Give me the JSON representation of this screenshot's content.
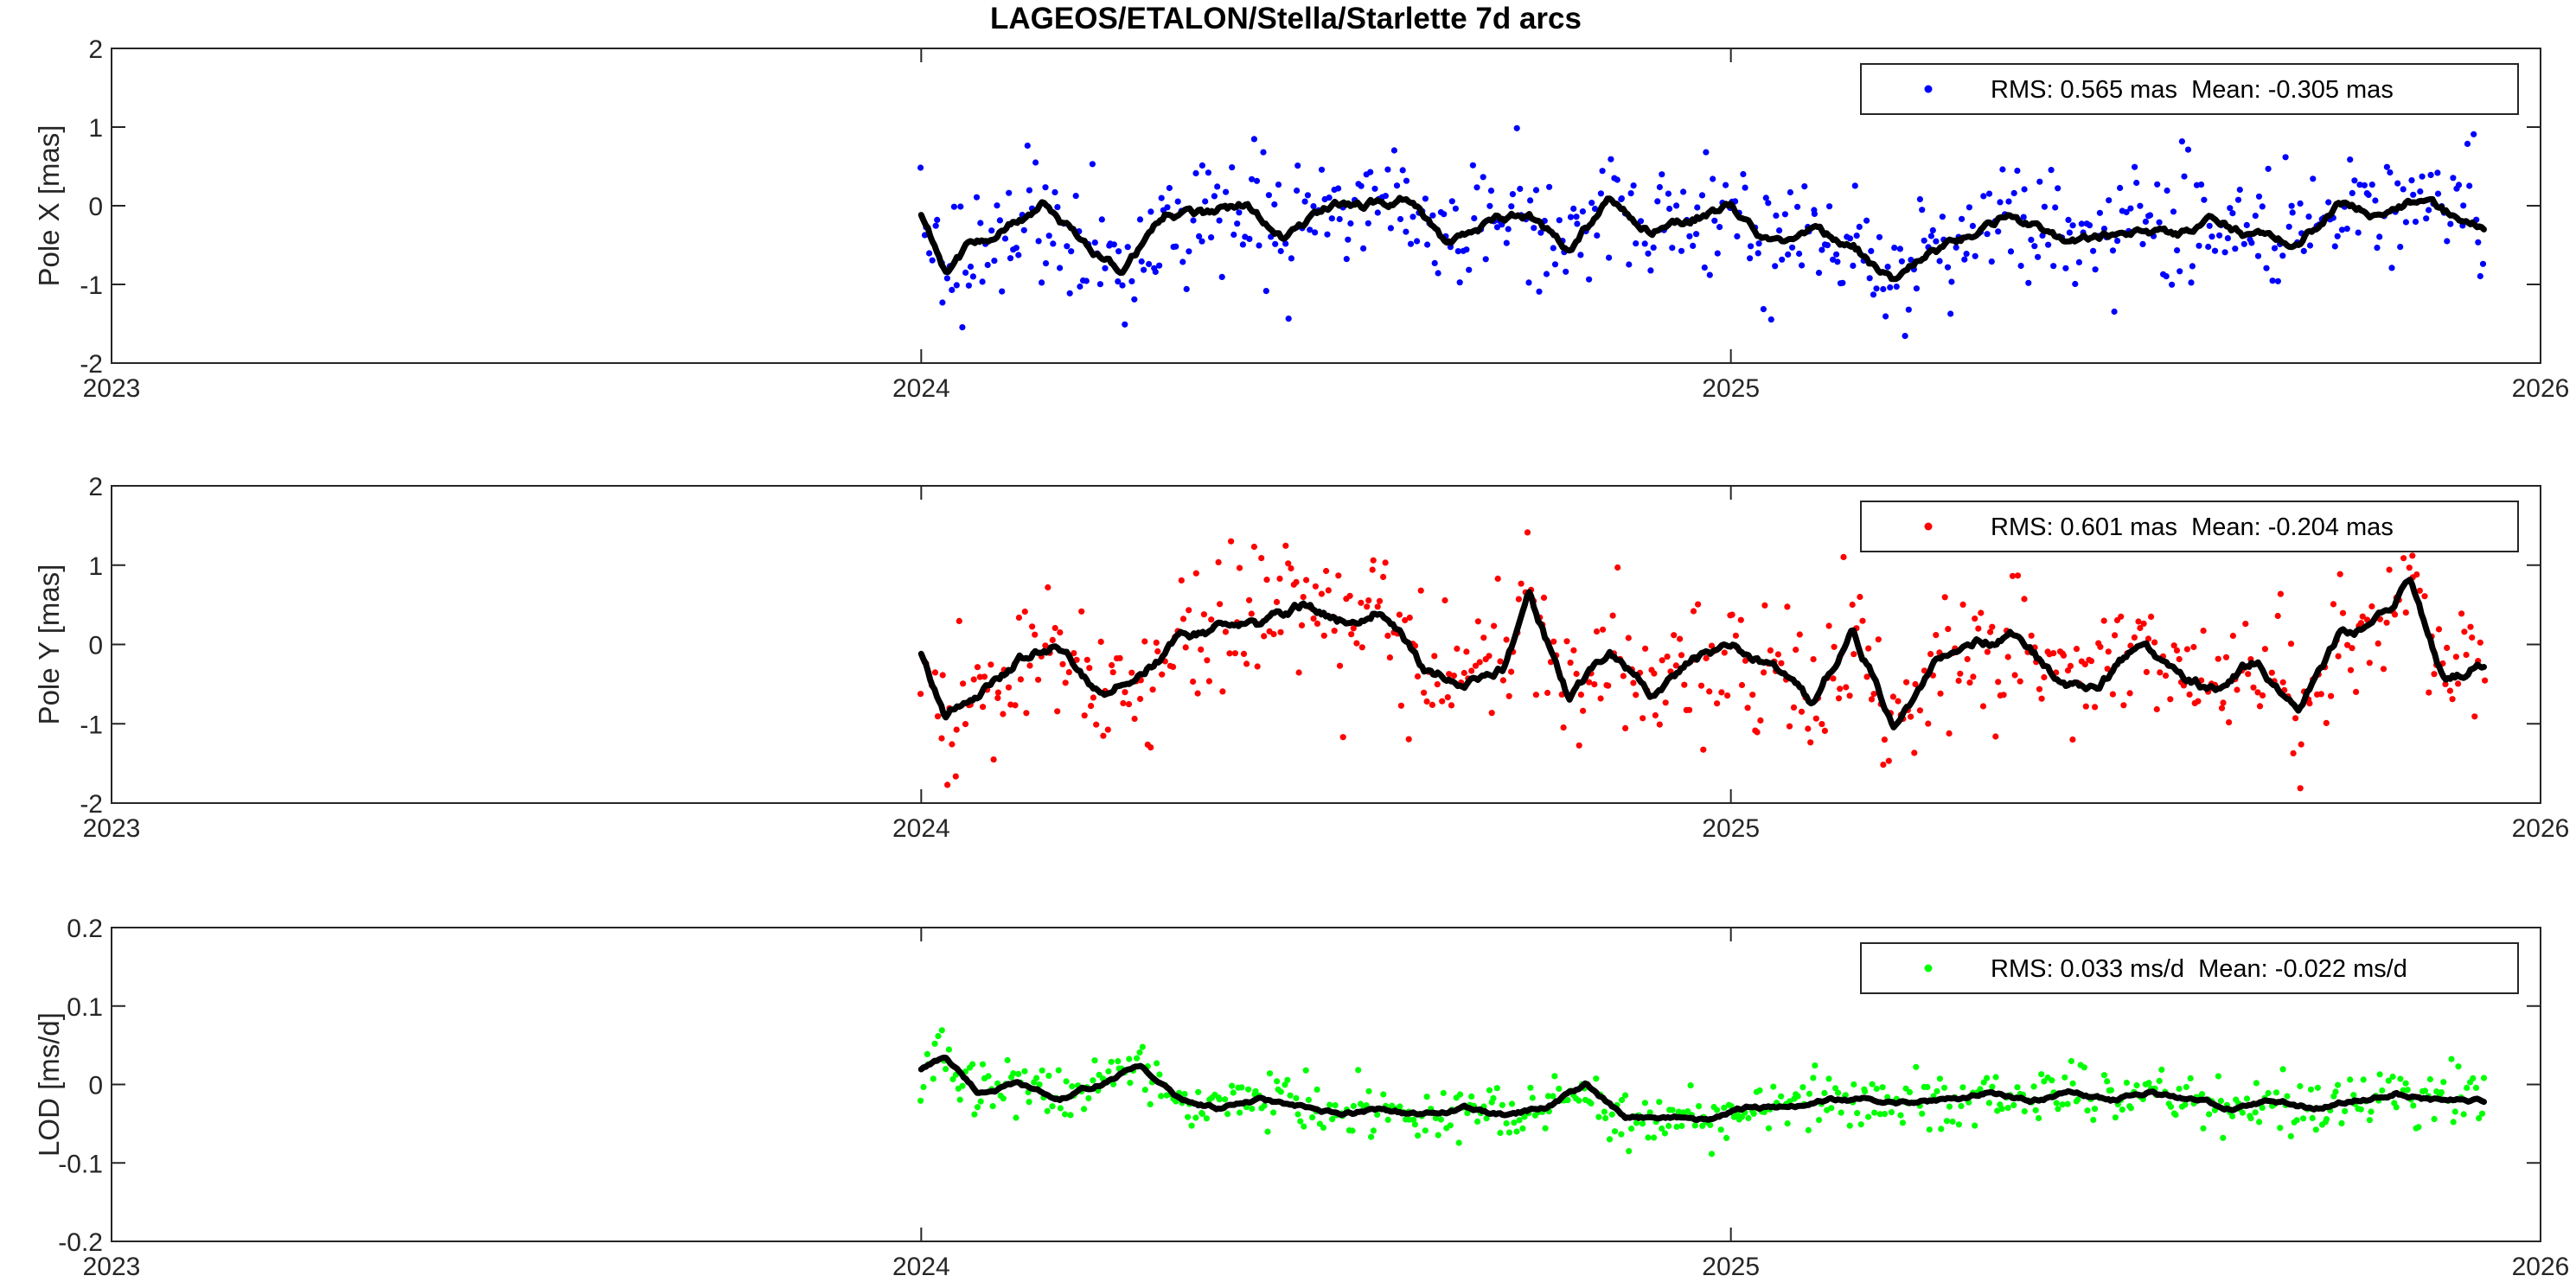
{
  "figure": {
    "title": "LAGEOS/ETALON/Stella/Starlette 7d arcs"
  },
  "chart_data": [
    {
      "type": "scatter",
      "name": "pole-x",
      "ylabel": "Pole X [mas]",
      "xlim": [
        2023,
        2026
      ],
      "ylim": [
        -2,
        2
      ],
      "yticks": [
        -2,
        -1,
        0,
        1,
        2
      ],
      "yticklabels": [
        "-2",
        "-1",
        "0",
        "1",
        "2"
      ],
      "xticks": [
        2023,
        2024,
        2025,
        2026
      ],
      "xticklabels": [
        "2023",
        "2024",
        "2025",
        "2026"
      ],
      "grid": false,
      "legend": {
        "placement": "top-right",
        "text": "RMS: 0.565 mas  Mean: -0.305 mas"
      },
      "dot_color": "#0000ff",
      "line_color": "#000000",
      "data_range": [
        2024.0,
        2025.93
      ],
      "smooth": {
        "x": [
          2024.0,
          2024.03,
          2024.06,
          2024.1,
          2024.15,
          2024.2,
          2024.25,
          2024.3,
          2024.35,
          2024.4,
          2024.45,
          2024.5,
          2024.55,
          2024.6,
          2024.65,
          2024.7,
          2024.75,
          2024.8,
          2024.85,
          2024.9,
          2024.95,
          2025.0,
          2025.05,
          2025.1,
          2025.15,
          2025.2,
          2025.25,
          2025.3,
          2025.35,
          2025.4,
          2025.45,
          2025.5,
          2025.55,
          2025.6,
          2025.65,
          2025.7,
          2025.75,
          2025.8,
          2025.85,
          2025.9,
          2025.93
        ],
        "y": [
          -0.1,
          -0.8,
          -0.5,
          -0.3,
          0.0,
          -0.5,
          -0.8,
          -0.1,
          -0.1,
          0.0,
          -0.4,
          0.0,
          0.0,
          0.1,
          -0.5,
          -0.2,
          -0.1,
          -0.6,
          0.1,
          -0.3,
          -0.2,
          0.0,
          -0.5,
          -0.3,
          -0.5,
          -1.0,
          -0.6,
          -0.4,
          -0.1,
          -0.4,
          -0.4,
          -0.3,
          -0.4,
          -0.2,
          -0.4,
          -0.5,
          0.0,
          -0.1,
          0.1,
          -0.2,
          -0.3
        ]
      },
      "scatter": {
        "seed": 11,
        "spread": 0.42,
        "outlier_rate": 0.08,
        "outlier_spread": 1.1
      }
    },
    {
      "type": "scatter",
      "name": "pole-y",
      "ylabel": "Pole Y [mas]",
      "xlim": [
        2023,
        2026
      ],
      "ylim": [
        -2,
        2
      ],
      "yticks": [
        -2,
        -1,
        0,
        1,
        2
      ],
      "yticklabels": [
        "-2",
        "-1",
        "0",
        "1",
        "2"
      ],
      "xticks": [
        2023,
        2024,
        2025,
        2026
      ],
      "xticklabels": [
        "2023",
        "2024",
        "2025",
        "2026"
      ],
      "grid": false,
      "legend": {
        "placement": "top-right",
        "text": "RMS: 0.601 mas  Mean: -0.204 mas"
      },
      "dot_color": "#ff0000",
      "line_color": "#000000",
      "data_range": [
        2024.0,
        2025.93
      ],
      "smooth": {
        "x": [
          2024.0,
          2024.03,
          2024.07,
          2024.12,
          2024.17,
          2024.22,
          2024.27,
          2024.32,
          2024.37,
          2024.42,
          2024.47,
          2024.52,
          2024.57,
          2024.62,
          2024.67,
          2024.72,
          2024.75,
          2024.8,
          2024.85,
          2024.9,
          2024.95,
          2025.0,
          2025.05,
          2025.1,
          2025.15,
          2025.2,
          2025.25,
          2025.3,
          2025.35,
          2025.4,
          2025.45,
          2025.5,
          2025.55,
          2025.6,
          2025.65,
          2025.7,
          2025.75,
          2025.8,
          2025.84,
          2025.88,
          2025.93
        ],
        "y": [
          -0.1,
          -0.9,
          -0.6,
          -0.2,
          0.0,
          -0.6,
          -0.4,
          0.1,
          0.2,
          0.2,
          0.5,
          0.3,
          0.5,
          -0.3,
          -0.5,
          -0.3,
          0.6,
          -0.7,
          -0.1,
          -0.6,
          -0.2,
          0.0,
          -0.3,
          -0.8,
          0.2,
          -1.0,
          -0.3,
          0.0,
          0.1,
          -0.4,
          -0.6,
          0.0,
          -0.3,
          -0.6,
          -0.2,
          -0.8,
          0.1,
          0.3,
          0.8,
          -0.5,
          -0.2
        ]
      },
      "scatter": {
        "seed": 23,
        "spread": 0.45,
        "outlier_rate": 0.08,
        "outlier_spread": 1.1
      }
    },
    {
      "type": "scatter",
      "name": "lod",
      "ylabel": "LOD [ms/d]",
      "xlim": [
        2023,
        2026
      ],
      "ylim": [
        -0.2,
        0.2
      ],
      "yticks": [
        -0.2,
        -0.1,
        0,
        0.1,
        0.2
      ],
      "yticklabels": [
        "-0.2",
        "-0.1",
        "0",
        "0.1",
        "0.2"
      ],
      "xticks": [
        2023,
        2024,
        2025,
        2026
      ],
      "xticklabels": [
        "2023",
        "2024",
        "2025",
        "2026"
      ],
      "grid": false,
      "legend": {
        "placement": "top-right",
        "text": "RMS: 0.033 ms/d  Mean: -0.022 ms/d"
      },
      "dot_color": "#00ff00",
      "line_color": "#000000",
      "data_range": [
        2024.0,
        2025.93
      ],
      "smooth": {
        "x": [
          2024.0,
          2024.03,
          2024.07,
          2024.12,
          2024.17,
          2024.22,
          2024.27,
          2024.32,
          2024.37,
          2024.42,
          2024.47,
          2024.52,
          2024.57,
          2024.62,
          2024.67,
          2024.72,
          2024.77,
          2024.82,
          2024.87,
          2024.92,
          2024.97,
          2025.02,
          2025.07,
          2025.12,
          2025.17,
          2025.22,
          2025.27,
          2025.32,
          2025.37,
          2025.42,
          2025.47,
          2025.52,
          2025.57,
          2025.62,
          2025.67,
          2025.72,
          2025.77,
          2025.82,
          2025.87,
          2025.93
        ],
        "y": [
          0.02,
          0.035,
          -0.01,
          0.0,
          -0.02,
          0.0,
          0.025,
          -0.02,
          -0.03,
          -0.02,
          -0.03,
          -0.04,
          -0.03,
          -0.04,
          -0.03,
          -0.04,
          -0.03,
          0.0,
          -0.045,
          -0.04,
          -0.045,
          -0.03,
          -0.03,
          -0.02,
          -0.02,
          -0.02,
          -0.02,
          -0.01,
          -0.02,
          -0.01,
          -0.02,
          -0.01,
          -0.02,
          -0.03,
          -0.02,
          -0.03,
          -0.02,
          -0.01,
          -0.02,
          -0.02
        ]
      },
      "scatter": {
        "seed": 37,
        "spread": 0.018,
        "outlier_rate": 0.06,
        "outlier_spread": 0.05
      }
    }
  ]
}
